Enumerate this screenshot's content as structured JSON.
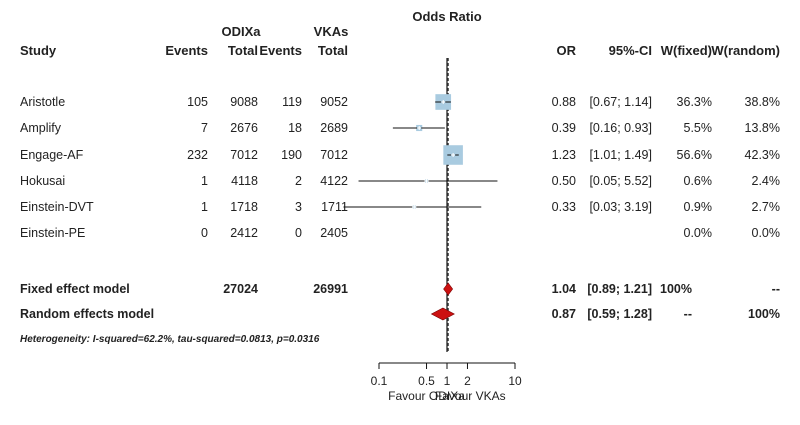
{
  "chart_data": {
    "type": "forest",
    "headers": {
      "group1": "ODIXa",
      "group2": "VKAs",
      "plot": "Odds Ratio",
      "study": "Study",
      "events1": "Events",
      "total1": "Total",
      "events2": "Events",
      "total2": "Total",
      "or": "OR",
      "ci": "95%-CI",
      "wfixed": "W(fixed)",
      "wrandom": "W(random)"
    },
    "studies": [
      {
        "name": "Aristotle",
        "e1": "105",
        "n1": "9088",
        "e2": "119",
        "n2": "9052",
        "or": 0.88,
        "lo": 0.67,
        "hi": 1.14,
        "or_text": "0.88",
        "ci_text": "[0.67; 1.14]",
        "wf": "36.3%",
        "wr": "38.8%",
        "weight": 36.3
      },
      {
        "name": "Amplify",
        "e1": "7",
        "n1": "2676",
        "e2": "18",
        "n2": "2689",
        "or": 0.39,
        "lo": 0.16,
        "hi": 0.93,
        "or_text": "0.39",
        "ci_text": "[0.16; 0.93]",
        "wf": "5.5%",
        "wr": "13.8%",
        "weight": 5.5
      },
      {
        "name": "Engage-AF",
        "e1": "232",
        "n1": "7012",
        "e2": "190",
        "n2": "7012",
        "or": 1.23,
        "lo": 1.01,
        "hi": 1.49,
        "or_text": "1.23",
        "ci_text": "[1.01; 1.49]",
        "wf": "56.6%",
        "wr": "42.3%",
        "weight": 56.6
      },
      {
        "name": "Hokusai",
        "e1": "1",
        "n1": "4118",
        "e2": "2",
        "n2": "4122",
        "or": 0.5,
        "lo": 0.05,
        "hi": 5.52,
        "or_text": "0.50",
        "ci_text": "[0.05; 5.52]",
        "wf": "0.6%",
        "wr": "2.4%",
        "weight": 0.6
      },
      {
        "name": "Einstein-DVT",
        "e1": "1",
        "n1": "1718",
        "e2": "3",
        "n2": "1711",
        "or": 0.33,
        "lo": 0.03,
        "hi": 3.19,
        "or_text": "0.33",
        "ci_text": "[0.03; 3.19]",
        "wf": "0.9%",
        "wr": "2.7%",
        "weight": 0.9
      },
      {
        "name": "Einstein-PE",
        "e1": "0",
        "n1": "2412",
        "e2": "0",
        "n2": "2405",
        "or": null,
        "lo": null,
        "hi": null,
        "or_text": "",
        "ci_text": "",
        "wf": "0.0%",
        "wr": "0.0%",
        "weight": 0
      }
    ],
    "models": [
      {
        "name": "Fixed effect model",
        "n1": "27024",
        "n2": "26991",
        "or": 1.04,
        "lo": 0.89,
        "hi": 1.21,
        "or_text": "1.04",
        "ci_text": "[0.89; 1.21]",
        "wf": "100%",
        "wr": "--"
      },
      {
        "name": "Random effects model",
        "n1": "",
        "n2": "",
        "or": 0.87,
        "lo": 0.59,
        "hi": 1.28,
        "or_text": "0.87",
        "ci_text": "[0.59; 1.28]",
        "wf": "--",
        "wr": "100%"
      }
    ],
    "heterogeneity": "Heterogeneity: I-squared=62.2%, tau-squared=0.0813, p=0.0316",
    "x_axis": {
      "scale": "log",
      "ticks": [
        0.1,
        0.5,
        1,
        2,
        10
      ],
      "tick_labels": [
        "0.1",
        "0.5",
        "1",
        "2",
        "10"
      ],
      "range": [
        0.03,
        15
      ],
      "label_left": "Favour ODIXa",
      "label_right": "Favour VKAs"
    },
    "colors": {
      "box": "#a9cbe0",
      "diamond": "#cc1111",
      "line": "#111111"
    }
  }
}
